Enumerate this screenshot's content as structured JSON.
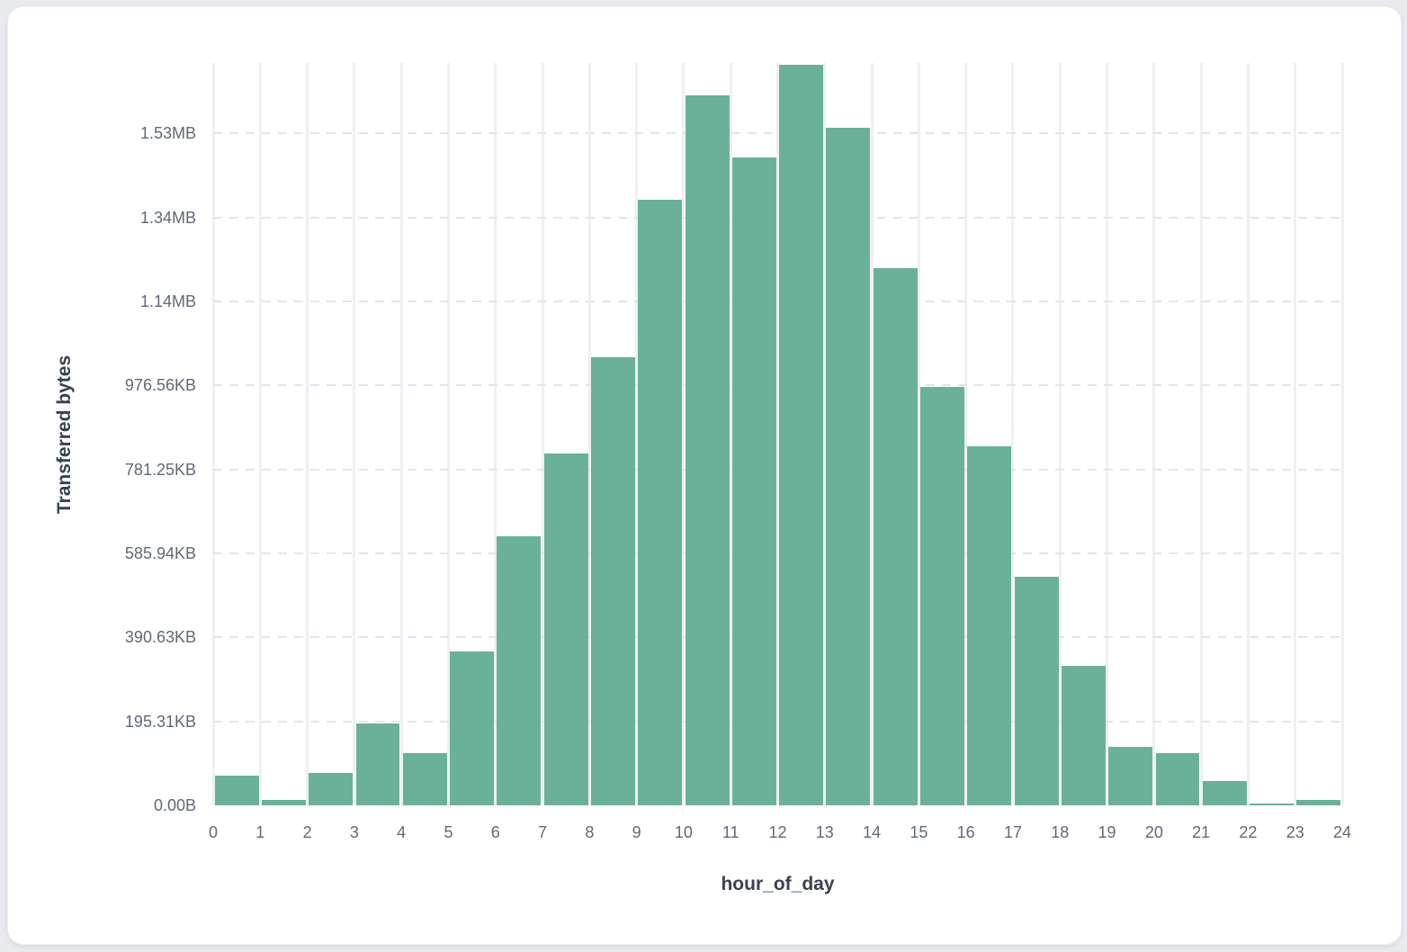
{
  "chart_data": {
    "type": "bar",
    "title": "",
    "xlabel": "hour_of_day",
    "ylabel": "Transferred bytes",
    "categories": [
      0,
      1,
      2,
      3,
      4,
      5,
      6,
      7,
      8,
      9,
      10,
      11,
      12,
      13,
      14,
      15,
      16,
      17,
      18,
      19,
      20,
      21,
      22,
      23
    ],
    "values_kb": [
      70,
      12,
      75,
      190,
      122,
      358,
      626,
      817,
      1042,
      1408,
      1650,
      1507,
      1722,
      1576,
      1249,
      973,
      835,
      532,
      324,
      135,
      121,
      56,
      5,
      12
    ],
    "x_ticks": [
      "0",
      "1",
      "2",
      "3",
      "4",
      "5",
      "6",
      "7",
      "8",
      "9",
      "10",
      "11",
      "12",
      "13",
      "14",
      "15",
      "16",
      "17",
      "18",
      "19",
      "20",
      "21",
      "22",
      "23",
      "24"
    ],
    "y_ticks": [
      {
        "label": "0.00B",
        "kb": 0
      },
      {
        "label": "195.31KB",
        "kb": 195.31
      },
      {
        "label": "390.63KB",
        "kb": 390.63
      },
      {
        "label": "585.94KB",
        "kb": 585.94
      },
      {
        "label": "781.25KB",
        "kb": 781.25
      },
      {
        "label": "976.56KB",
        "kb": 976.56
      },
      {
        "label": "1.14MB",
        "kb": 1171.88
      },
      {
        "label": "1.34MB",
        "kb": 1367.19
      },
      {
        "label": "1.53MB",
        "kb": 1562.5
      }
    ],
    "ylim_kb": [
      0,
      1726
    ],
    "xlim": [
      0,
      24
    ],
    "legend": "none",
    "grid": {
      "vertical": "solid",
      "horizontal": "dashed"
    },
    "colors": {
      "bar": "#6bb199",
      "vertical_grid": "#eef0f5",
      "horizontal_grid": "#e2e5ec",
      "tick_text": "#5f6a78",
      "axis_title_text": "#394150",
      "card_background": "#ffffff",
      "page_background": "#e8eaee"
    }
  }
}
